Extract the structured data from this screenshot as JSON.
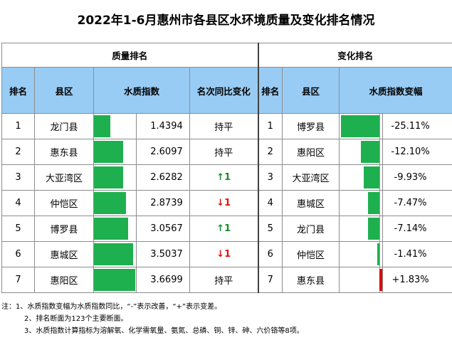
{
  "title": "2022年1-6月惠州市各县区水环境质量及变化排名情况",
  "groups": {
    "quality": "质量排名",
    "change": "变化排名"
  },
  "headers": {
    "rank": "排名",
    "county": "县区",
    "index": "水质指数",
    "yoy": "名次同比变化",
    "rank2": "排名",
    "county2": "县区",
    "index_change": "水质指数变幅"
  },
  "colors": {
    "bar_green": "#1eb04f",
    "bar_red": "#e00000",
    "header_blue": "#99ccf4"
  },
  "quality_rows": [
    {
      "rank": "1",
      "county": "龙门县",
      "index": "1.4394",
      "index_value": 1.4394,
      "yoy": "持平",
      "yoy_type": "flat"
    },
    {
      "rank": "2",
      "county": "惠东县",
      "index": "2.6097",
      "index_value": 2.6097,
      "yoy": "持平",
      "yoy_type": "flat"
    },
    {
      "rank": "3",
      "county": "大亚湾区",
      "index": "2.6282",
      "index_value": 2.6282,
      "yoy": "↑1",
      "yoy_type": "up"
    },
    {
      "rank": "4",
      "county": "仲恺区",
      "index": "2.8739",
      "index_value": 2.8739,
      "yoy": "↓1",
      "yoy_type": "down"
    },
    {
      "rank": "5",
      "county": "博罗县",
      "index": "3.0567",
      "index_value": 3.0567,
      "yoy": "↑1",
      "yoy_type": "up"
    },
    {
      "rank": "6",
      "county": "惠城区",
      "index": "3.5037",
      "index_value": 3.5037,
      "yoy": "↓1",
      "yoy_type": "down"
    },
    {
      "rank": "7",
      "county": "惠阳区",
      "index": "3.6699",
      "index_value": 3.6699,
      "yoy": "持平",
      "yoy_type": "flat"
    }
  ],
  "change_rows": [
    {
      "rank": "1",
      "county": "博罗县",
      "change": "-25.11%",
      "change_value": -25.11
    },
    {
      "rank": "2",
      "county": "惠阳区",
      "change": "-12.10%",
      "change_value": -12.1
    },
    {
      "rank": "3",
      "county": "大亚湾区",
      "change": "-9.93%",
      "change_value": -9.93
    },
    {
      "rank": "4",
      "county": "惠城区",
      "change": "-7.47%",
      "change_value": -7.47
    },
    {
      "rank": "5",
      "county": "龙门县",
      "change": "-7.14%",
      "change_value": -7.14
    },
    {
      "rank": "6",
      "county": "仲恺区",
      "change": "-1.41%",
      "change_value": -1.41
    },
    {
      "rank": "7",
      "county": "惠东县",
      "change": "+1.83%",
      "change_value": 1.83
    }
  ],
  "notes": [
    "注：1、水质指数变幅为水质指数同比，“-”表示改善，“+”表示变差。",
    "2、排名断面为123个主要断面。",
    "3、水质指数计算指标为溶解氧、化学需氧量、氨氮、总磷、铜、锌、砷、六价铬等8项。"
  ]
}
